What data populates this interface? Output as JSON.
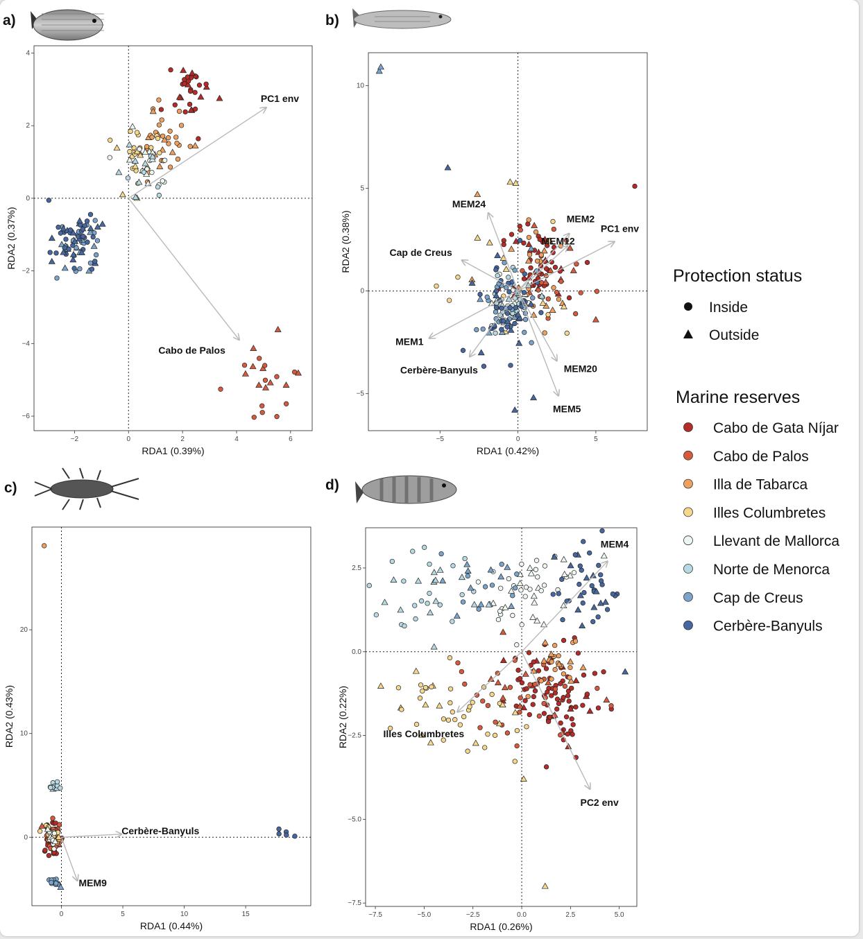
{
  "colors": {
    "Cabo de Gata Níjar": "#b42b27",
    "Cabo de Palos": "#d65a3d",
    "Illa de Tabarca": "#eea05f",
    "Illes Columbretes": "#f6d78c",
    "Llevant de Mallorca": "#eef6f0",
    "Norte de Menorca": "#b7d9e4",
    "Cap de Creus": "#7aa4cc",
    "Cerbère-Banyuls": "#46679f"
  },
  "legend": {
    "protection_title": "Protection status",
    "protection_items": [
      "Inside",
      "Outside"
    ],
    "reserves_title": "Marine reserves",
    "reserves_items": [
      "Cabo de Gata Níjar",
      "Cabo de Palos",
      "Illa de Tabarca",
      "Illes Columbretes",
      "Llevant de Mallorca",
      "Norte de Menorca",
      "Cap de Creus",
      "Cerbère-Banyuls"
    ]
  },
  "chart_data": [
    {
      "type": "scatter",
      "panel_label": "a)",
      "species_icon": "sea-bream-fish-icon",
      "xlabel": "RDA1 (0.39%)",
      "ylabel": "RDA2 (0.37%)",
      "xlim": [
        -3.5,
        6.8
      ],
      "ylim": [
        -6.4,
        4.2
      ],
      "xticks": [
        -2,
        0,
        2,
        4,
        6
      ],
      "xtick_labels": [
        "−2",
        "0",
        "2",
        "4",
        "6"
      ],
      "yticks": [
        -6,
        -4,
        -2,
        0,
        2,
        4
      ],
      "ytick_labels": [
        "−6",
        "−4",
        "−2",
        "0",
        "2",
        "4"
      ],
      "arrows": [
        {
          "label": "PC1 env",
          "x": 5.1,
          "y": 2.5
        },
        {
          "label": "Cabo de Palos",
          "x": 4.1,
          "y": -3.9
        }
      ],
      "clusters": [
        {
          "group": "Cabo de Gata Níjar",
          "cx": 2.4,
          "cy": 2.9,
          "sx": 0.45,
          "sy": 0.5,
          "n": 30,
          "tri": 0.25
        },
        {
          "group": "Cabo de Palos",
          "cx": 5.1,
          "cy": -5.0,
          "sx": 0.5,
          "sy": 0.55,
          "n": 22,
          "tri": 0.5
        },
        {
          "group": "Illa de Tabarca",
          "cx": 1.3,
          "cy": 1.7,
          "sx": 0.5,
          "sy": 0.45,
          "n": 35,
          "tri": 0.3
        },
        {
          "group": "Illes Columbretes",
          "cx": 0.4,
          "cy": 1.0,
          "sx": 0.5,
          "sy": 0.45,
          "n": 24,
          "tri": 0.3
        },
        {
          "group": "Llevant de Mallorca",
          "cx": 0.7,
          "cy": 1.1,
          "sx": 0.45,
          "sy": 0.45,
          "n": 20,
          "tri": 0.35
        },
        {
          "group": "Norte de Menorca",
          "cx": 0.4,
          "cy": 0.9,
          "sx": 0.4,
          "sy": 0.45,
          "n": 12,
          "tri": 0.4
        },
        {
          "group": "Cap de Creus",
          "cx": -1.8,
          "cy": -1.2,
          "sx": 0.45,
          "sy": 0.35,
          "n": 35,
          "tri": 0.3
        },
        {
          "group": "Cerbère-Banyuls",
          "cx": -2.0,
          "cy": -1.1,
          "sx": 0.5,
          "sy": 0.4,
          "n": 45,
          "tri": 0.35
        }
      ]
    },
    {
      "type": "scatter",
      "panel_label": "b)",
      "species_icon": "striped-mullet-fish-icon",
      "xlabel": "RDA1 (0.42%)",
      "ylabel": "RDA2 (0.38%)",
      "xlim": [
        -9.6,
        8.3
      ],
      "ylim": [
        -6.8,
        11.6
      ],
      "xticks": [
        -5,
        0,
        5
      ],
      "xtick_labels": [
        "−5",
        "0",
        "5"
      ],
      "yticks": [
        -5,
        0,
        5,
        10
      ],
      "ytick_labels": [
        "−5",
        "0",
        "5",
        "10"
      ],
      "arrows": [
        {
          "label": "MEM24",
          "x": -1.9,
          "y": 3.8
        },
        {
          "label": "MEM2",
          "x": 3.3,
          "y": 2.8
        },
        {
          "label": "PC1 env",
          "x": 6.2,
          "y": 2.4
        },
        {
          "label": "MEM12",
          "x": 3.2,
          "y": 2.2
        },
        {
          "label": "Cap de Creus",
          "x": -3.6,
          "y": 1.5
        },
        {
          "label": "MEM1",
          "x": -5.7,
          "y": -2.3
        },
        {
          "label": "Cerbère-Banyuls",
          "x": -3.1,
          "y": -3.2
        },
        {
          "label": "MEM20",
          "x": 2.5,
          "y": -3.4
        },
        {
          "label": "MEM5",
          "x": 2.6,
          "y": -5.1
        }
      ],
      "clusters": [
        {
          "group": "Cabo de Gata Níjar",
          "cx": 1.4,
          "cy": 1.0,
          "sx": 1.1,
          "sy": 1.0,
          "n": 50,
          "tri": 0.3
        },
        {
          "group": "Cabo de Palos",
          "cx": 2.4,
          "cy": 0.8,
          "sx": 1.2,
          "sy": 1.2,
          "n": 25,
          "tri": 0.3
        },
        {
          "group": "Illa de Tabarca",
          "cx": 1.4,
          "cy": 0.3,
          "sx": 1.3,
          "sy": 1.5,
          "n": 25,
          "tri": 0.3
        },
        {
          "group": "Illes Columbretes",
          "cx": -0.3,
          "cy": 0.6,
          "sx": 1.6,
          "sy": 1.9,
          "n": 20,
          "tri": 0.4
        },
        {
          "group": "Llevant de Mallorca",
          "cx": -0.4,
          "cy": -0.7,
          "sx": 0.7,
          "sy": 0.6,
          "n": 25,
          "tri": 0.25
        },
        {
          "group": "Norte de Menorca",
          "cx": -0.5,
          "cy": -0.4,
          "sx": 0.8,
          "sy": 0.8,
          "n": 25,
          "tri": 0.3
        },
        {
          "group": "Cap de Creus",
          "cx": -1.0,
          "cy": -0.5,
          "sx": 1.0,
          "sy": 1.0,
          "n": 35,
          "tri": 0.3
        },
        {
          "group": "Cerbère-Banyuls",
          "cx": -0.8,
          "cy": -0.9,
          "sx": 1.1,
          "sy": 1.3,
          "n": 45,
          "tri": 0.3
        }
      ],
      "extra_points": [
        {
          "group": "Cap de Creus",
          "x": -8.9,
          "y": 10.7,
          "shape": "triangle"
        },
        {
          "group": "Cap de Creus",
          "x": -8.8,
          "y": 10.9,
          "shape": "triangle"
        },
        {
          "group": "Cabo de Gata Níjar",
          "x": 7.5,
          "y": 5.1,
          "shape": "circle"
        },
        {
          "group": "Cerbère-Banyuls",
          "x": -4.5,
          "y": 6.0,
          "shape": "triangle"
        },
        {
          "group": "Illa de Tabarca",
          "x": -2.6,
          "y": 4.7,
          "shape": "triangle"
        },
        {
          "group": "Illes Columbretes",
          "x": -0.5,
          "y": 5.3,
          "shape": "triangle"
        },
        {
          "group": "Cerbère-Banyuls",
          "x": -0.2,
          "y": -5.8,
          "shape": "triangle"
        },
        {
          "group": "Cerbère-Banyuls",
          "x": 1.0,
          "y": -5.2,
          "shape": "triangle"
        },
        {
          "group": "Cabo de Palos",
          "x": 5.0,
          "y": -1.4,
          "shape": "triangle"
        }
      ]
    },
    {
      "type": "scatter",
      "panel_label": "c)",
      "species_icon": "lobster-icon",
      "xlabel": "RDA1 (0.44%)",
      "ylabel": "RDA2 (0.43%)",
      "xlim": [
        -2.4,
        20.3
      ],
      "ylim": [
        -6.6,
        29.9
      ],
      "xticks": [
        0,
        5,
        10,
        15
      ],
      "xtick_labels": [
        "0",
        "5",
        "10",
        "15"
      ],
      "yticks": [
        0,
        10,
        20
      ],
      "ytick_labels": [
        "0",
        "10",
        "20"
      ],
      "arrows": [
        {
          "label": "Cerbère-Banyuls",
          "x": 4.9,
          "y": 0.3
        },
        {
          "label": "MEM9",
          "x": 1.3,
          "y": -4.2
        }
      ],
      "clusters": [
        {
          "group": "Cabo de Gata Níjar",
          "cx": -0.7,
          "cy": -0.1,
          "sx": 0.3,
          "sy": 1.0,
          "n": 40,
          "tri": 0.1
        },
        {
          "group": "Cabo de Palos",
          "cx": -0.8,
          "cy": 0.2,
          "sx": 0.35,
          "sy": 0.8,
          "n": 25,
          "tri": 0.15
        },
        {
          "group": "Illa de Tabarca",
          "cx": -0.6,
          "cy": 0.0,
          "sx": 0.3,
          "sy": 0.5,
          "n": 15,
          "tri": 0.2
        },
        {
          "group": "Illes Columbretes",
          "cx": -0.8,
          "cy": 0.0,
          "sx": 0.3,
          "sy": 0.5,
          "n": 12,
          "tri": 0.2
        },
        {
          "group": "Llevant de Mallorca",
          "cx": -0.9,
          "cy": 0.0,
          "sx": 0.25,
          "sy": 0.5,
          "n": 12,
          "tri": 0.2
        },
        {
          "group": "Norte de Menorca",
          "cx": -0.6,
          "cy": 4.9,
          "sx": 0.25,
          "sy": 0.3,
          "n": 12,
          "tri": 0.1
        },
        {
          "group": "Cap de Creus",
          "cx": -0.6,
          "cy": -4.3,
          "sx": 0.25,
          "sy": 0.3,
          "n": 12,
          "tri": 0.1
        },
        {
          "group": "Cerbère-Banyuls",
          "cx": 18.0,
          "cy": 0.5,
          "sx": 0.5,
          "sy": 0.3,
          "n": 4,
          "tri": 0.0
        }
      ],
      "extra_points": [
        {
          "group": "Illa de Tabarca",
          "x": -1.4,
          "y": 28.1,
          "shape": "circle"
        },
        {
          "group": "Cerbère-Banyuls",
          "x": 19.0,
          "y": 0.1,
          "shape": "circle"
        }
      ]
    },
    {
      "type": "scatter",
      "panel_label": "d)",
      "species_icon": "comber-fish-icon",
      "xlabel": "RDA1 (0.26%)",
      "ylabel": "RDA2 (0.22%)",
      "xlim": [
        -8.0,
        5.9
      ],
      "ylim": [
        -7.6,
        3.7
      ],
      "xticks": [
        -7.5,
        -5,
        -2.5,
        0,
        2.5,
        5
      ],
      "xtick_labels": [
        "−7.5",
        "−5.0",
        "−2.5",
        "0.0",
        "2.5",
        "5.0"
      ],
      "yticks": [
        -7.5,
        -5,
        -2.5,
        0,
        2.5
      ],
      "ytick_labels": [
        "−7.5",
        "−5.0",
        "−2.5",
        "0.0",
        "2.5"
      ],
      "arrows": [
        {
          "label": "MEM4",
          "x": 4.4,
          "y": 2.7
        },
        {
          "label": "Illes Columbretes",
          "x": -3.3,
          "y": -1.8
        },
        {
          "label": "PC2 env",
          "x": 3.5,
          "y": -4.1
        }
      ],
      "clusters": [
        {
          "group": "Cabo de Gata Níjar",
          "cx": 1.7,
          "cy": -1.3,
          "sx": 1.1,
          "sy": 0.8,
          "n": 90,
          "tri": 0.2
        },
        {
          "group": "Cabo de Palos",
          "cx": -0.2,
          "cy": -1.3,
          "sx": 2.0,
          "sy": 0.8,
          "n": 40,
          "tri": 0.3
        },
        {
          "group": "Illa de Tabarca",
          "cx": 1.9,
          "cy": -0.4,
          "sx": 0.6,
          "sy": 0.45,
          "n": 25,
          "tri": 0.3
        },
        {
          "group": "Illes Columbretes",
          "cx": -3.7,
          "cy": -1.6,
          "sx": 2.0,
          "sy": 0.7,
          "n": 45,
          "tri": 0.2
        },
        {
          "group": "Llevant de Mallorca",
          "cx": 0.3,
          "cy": 1.8,
          "sx": 1.2,
          "sy": 0.6,
          "n": 45,
          "tri": 0.4
        },
        {
          "group": "Norte de Menorca",
          "cx": -4.5,
          "cy": 1.8,
          "sx": 1.5,
          "sy": 0.6,
          "n": 35,
          "tri": 0.4
        },
        {
          "group": "Cap de Creus",
          "cx": -1.8,
          "cy": 1.7,
          "sx": 1.2,
          "sy": 0.6,
          "n": 20,
          "tri": 0.5
        },
        {
          "group": "Cerbère-Banyuls",
          "cx": 3.4,
          "cy": 1.8,
          "sx": 0.8,
          "sy": 0.8,
          "n": 40,
          "tri": 0.3
        }
      ],
      "extra_points": [
        {
          "group": "Illes Columbretes",
          "x": 1.2,
          "y": -7.0,
          "shape": "triangle"
        },
        {
          "group": "Cerbère-Banyuls",
          "x": 5.3,
          "y": -0.6,
          "shape": "triangle"
        },
        {
          "group": "Illes Columbretes",
          "x": 0.1,
          "y": -3.8,
          "shape": "triangle"
        }
      ]
    }
  ]
}
